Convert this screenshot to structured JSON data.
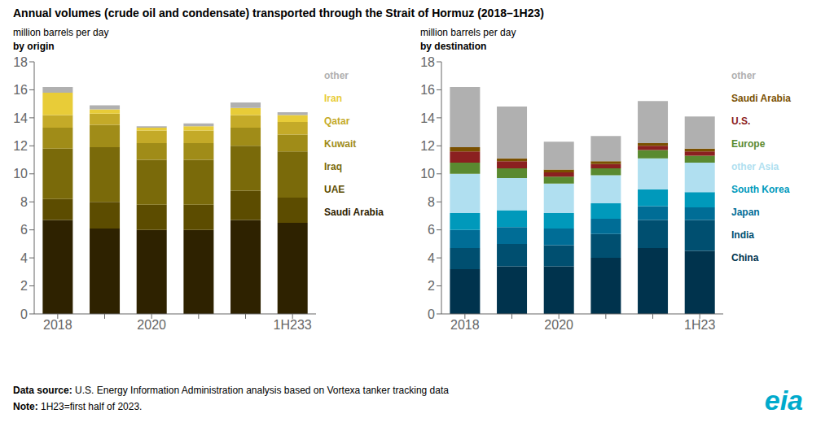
{
  "chart_data": [
    {
      "type": "bar",
      "title": "Annual volumes (crude oil and condensate) transported through the Strait of Hormuz (2018–1H23)",
      "subtitle": [
        "million barrels per day",
        "by origin"
      ],
      "categories": [
        "2018",
        null,
        "2020",
        null,
        null,
        "1H233"
      ],
      "stacked": true,
      "series": [
        {
          "name": "Saudi Arabia",
          "color": "#2e2200",
          "values": [
            6.7,
            6.1,
            6.0,
            6.0,
            6.7,
            6.5
          ]
        },
        {
          "name": "UAE",
          "color": "#5c4c00",
          "values": [
            1.5,
            1.9,
            1.8,
            1.8,
            2.1,
            1.8
          ]
        },
        {
          "name": "Iraq",
          "color": "#7a6a0a",
          "values": [
            3.6,
            3.9,
            3.2,
            3.2,
            3.2,
            3.3
          ]
        },
        {
          "name": "Kuwait",
          "color": "#a08c18",
          "values": [
            1.5,
            1.6,
            1.2,
            1.2,
            1.3,
            1.2
          ]
        },
        {
          "name": "Qatar",
          "color": "#c4aa28",
          "values": [
            0.9,
            0.8,
            0.9,
            0.9,
            0.9,
            0.9
          ]
        },
        {
          "name": "Iran",
          "color": "#e8cc38",
          "values": [
            1.6,
            0.3,
            0.2,
            0.3,
            0.5,
            0.5
          ]
        },
        {
          "name": "other",
          "color": "#b0b0b0",
          "values": [
            0.4,
            0.3,
            0.1,
            0.2,
            0.4,
            0.2
          ]
        }
      ],
      "ylim": [
        0,
        18
      ],
      "yticks": [
        0,
        2,
        4,
        6,
        8,
        10,
        12,
        14,
        16,
        18
      ],
      "grid": false,
      "legend": "right",
      "annotations": [
        {
          "text": "Data source: U.S. Energy Information Administration analysis based on Vortexa tanker tracking data"
        },
        {
          "text": "Note: 1H23=first half of 2023."
        },
        {
          "text": "eia",
          "color": "#00aacc"
        }
      ]
    },
    {
      "type": "bar",
      "subtitle": [
        "million barrels per day",
        "by destination"
      ],
      "categories": [
        "2018",
        null,
        "2020",
        null,
        null,
        "1H23"
      ],
      "stacked": true,
      "series": [
        {
          "name": "China",
          "color": "#00334d",
          "values": [
            3.2,
            3.4,
            3.4,
            4.0,
            4.7,
            4.5
          ]
        },
        {
          "name": "India",
          "color": "#004f70",
          "values": [
            1.5,
            1.6,
            1.5,
            1.7,
            2.0,
            2.2
          ]
        },
        {
          "name": "Japan",
          "color": "#006d96",
          "values": [
            1.3,
            1.2,
            1.2,
            1.1,
            1.0,
            0.9
          ]
        },
        {
          "name": "South Korea",
          "color": "#0099bb",
          "values": [
            1.2,
            1.2,
            1.1,
            1.1,
            1.2,
            1.1
          ]
        },
        {
          "name": "other Asia",
          "color": "#b0dff0",
          "values": [
            2.8,
            2.3,
            2.1,
            2.0,
            2.2,
            2.1
          ]
        },
        {
          "name": "Europe",
          "color": "#5a8a30",
          "values": [
            0.8,
            0.7,
            0.5,
            0.5,
            0.6,
            0.5
          ]
        },
        {
          "name": "U.S.",
          "color": "#8b2020",
          "values": [
            0.8,
            0.5,
            0.3,
            0.3,
            0.3,
            0.3
          ]
        },
        {
          "name": "Saudi Arabia",
          "color": "#7a5000",
          "values": [
            0.3,
            0.2,
            0.2,
            0.2,
            0.2,
            0.2
          ]
        },
        {
          "name": "other",
          "color": "#b0b0b0",
          "values": [
            4.3,
            3.7,
            2.0,
            1.8,
            3.0,
            2.3
          ]
        }
      ],
      "ylim": [
        0,
        18
      ],
      "yticks": [
        0,
        2,
        4,
        6,
        8,
        10,
        12,
        14,
        16,
        18
      ],
      "grid": false,
      "legend": "right"
    }
  ]
}
